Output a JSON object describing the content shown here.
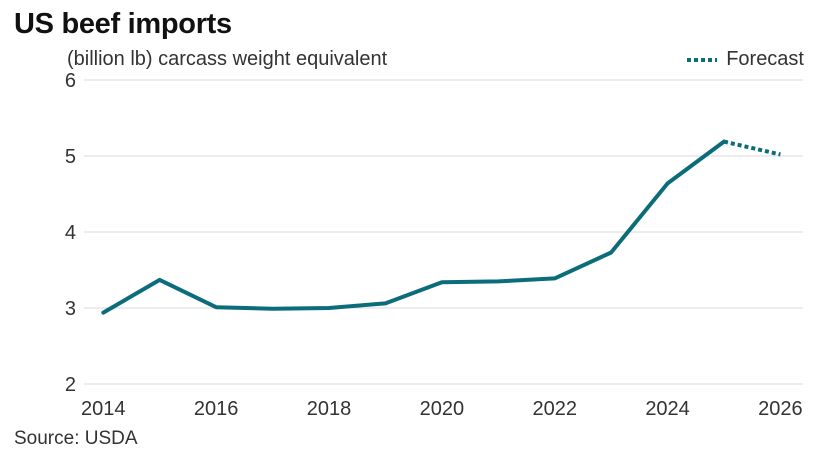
{
  "colors": {
    "series": "#0b6c7a",
    "grid": "#d9d9d9",
    "text": "#333333"
  },
  "chart_data": {
    "type": "line",
    "title": "US beef imports",
    "subtitle": "(billion lb) carcass weight equivalent",
    "source": "Source: USDA",
    "legend": {
      "label": "Forecast",
      "placement": "top-right",
      "style": "dotted"
    },
    "xlim": [
      2013.8,
      2026.4
    ],
    "ylim": [
      2,
      6
    ],
    "xticks": [
      2014,
      2016,
      2018,
      2020,
      2022,
      2024,
      2026
    ],
    "yticks": [
      2,
      3,
      4,
      5,
      6
    ],
    "grid": "horizontal",
    "series": [
      {
        "style": "solid",
        "x": [
          2014,
          2015,
          2016,
          2017,
          2018,
          2019,
          2020,
          2021,
          2022,
          2023,
          2024,
          2025
        ],
        "values": [
          2.94,
          3.37,
          3.01,
          2.99,
          3.0,
          3.06,
          3.34,
          3.35,
          3.39,
          3.73,
          4.64,
          5.19
        ]
      },
      {
        "name": "Forecast",
        "style": "dotted",
        "x": [
          2025,
          2026
        ],
        "values": [
          5.19,
          5.02
        ]
      }
    ]
  }
}
